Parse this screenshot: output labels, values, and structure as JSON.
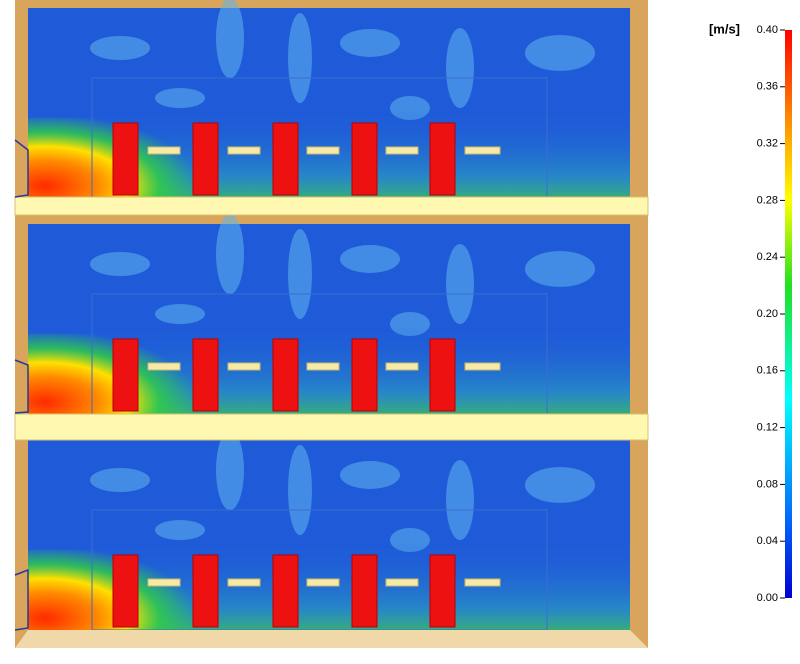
{
  "colorbar": {
    "unit": "[m/s]",
    "ticks": [
      {
        "value": 0.4,
        "label": "0.40"
      },
      {
        "value": 0.36,
        "label": "0.36"
      },
      {
        "value": 0.32,
        "label": "0.32"
      },
      {
        "value": 0.28,
        "label": "0.28"
      },
      {
        "value": 0.24,
        "label": "0.24"
      },
      {
        "value": 0.2,
        "label": "0.20"
      },
      {
        "value": 0.16,
        "label": "0.16"
      },
      {
        "value": 0.12,
        "label": "0.12"
      },
      {
        "value": 0.08,
        "label": "0.08"
      },
      {
        "value": 0.04,
        "label": "0.04"
      },
      {
        "value": 0,
        "label": "0.00"
      }
    ]
  }
}
